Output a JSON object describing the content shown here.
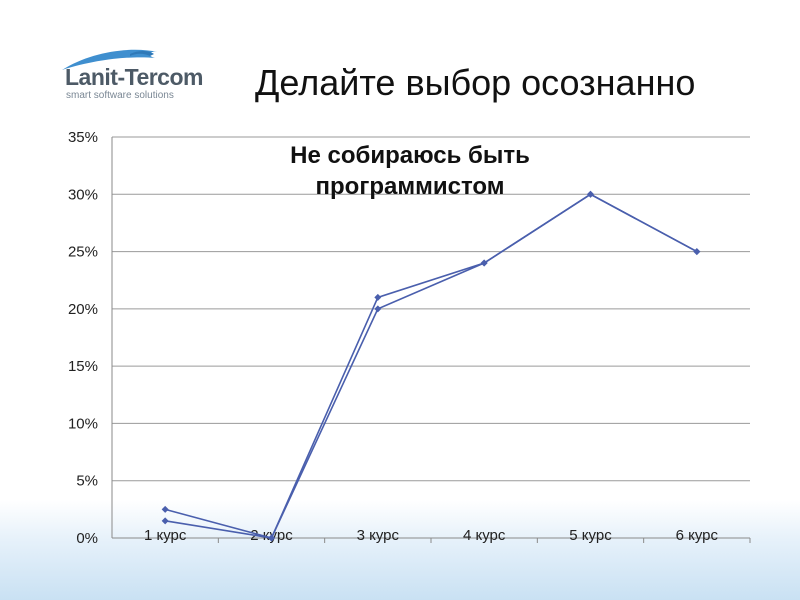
{
  "slide": {
    "title": "Делайте выбор осознанно"
  },
  "logo": {
    "name": "Lanit-Tercom",
    "tagline": "smart software solutions",
    "icon": "swoosh-mark",
    "color": "#3f8fcf"
  },
  "chart_data": {
    "type": "line",
    "title_lines": [
      "Не собираюсь быть",
      "программистом"
    ],
    "categories": [
      "1 курс",
      "2 курс",
      "3 курс",
      "4 курс",
      "5 курс",
      "6 курс"
    ],
    "series": [
      {
        "values": [
          2.5,
          0,
          21,
          24,
          30,
          25
        ],
        "color": "#4a5fad"
      },
      {
        "values": [
          1.5,
          0,
          20,
          24,
          30,
          25
        ],
        "color": "#4a5fad"
      }
    ],
    "yticks": [
      "0%",
      "5%",
      "10%",
      "15%",
      "20%",
      "25%",
      "30%",
      "35%"
    ],
    "ylim": [
      0,
      35
    ],
    "grid": true,
    "legend": "none"
  }
}
